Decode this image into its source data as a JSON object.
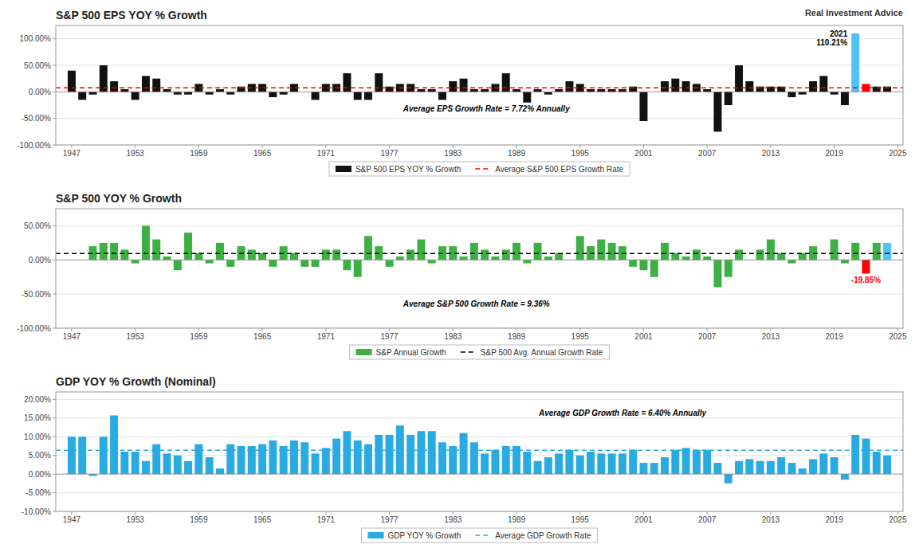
{
  "chart_data": [
    {
      "type": "bar",
      "title": "S&P 500 EPS YOY % Growth",
      "subtitle": "Real Investment Advice",
      "x": [
        1947,
        1948,
        1949,
        1950,
        1951,
        1952,
        1953,
        1954,
        1955,
        1956,
        1957,
        1958,
        1959,
        1960,
        1961,
        1962,
        1963,
        1964,
        1965,
        1966,
        1967,
        1968,
        1969,
        1970,
        1971,
        1972,
        1973,
        1974,
        1975,
        1976,
        1977,
        1978,
        1979,
        1980,
        1981,
        1982,
        1983,
        1984,
        1985,
        1986,
        1987,
        1988,
        1989,
        1990,
        1991,
        1992,
        1993,
        1994,
        1995,
        1996,
        1997,
        1998,
        1999,
        2000,
        2001,
        2002,
        2003,
        2004,
        2005,
        2006,
        2007,
        2008,
        2009,
        2010,
        2011,
        2012,
        2013,
        2014,
        2015,
        2016,
        2017,
        2018,
        2019,
        2020,
        2021,
        2022,
        2023,
        2024
      ],
      "series": [
        {
          "name": "S&P 500 EPS YOY % Growth",
          "type": "bar",
          "color": "#111111",
          "colors": [
            "#111111",
            "#111111",
            "#111111",
            "#111111",
            "#111111",
            "#111111",
            "#111111",
            "#111111",
            "#111111",
            "#111111",
            "#111111",
            "#111111",
            "#111111",
            "#111111",
            "#111111",
            "#111111",
            "#111111",
            "#111111",
            "#111111",
            "#111111",
            "#111111",
            "#111111",
            "#111111",
            "#111111",
            "#111111",
            "#111111",
            "#111111",
            "#111111",
            "#111111",
            "#111111",
            "#111111",
            "#111111",
            "#111111",
            "#111111",
            "#111111",
            "#111111",
            "#111111",
            "#111111",
            "#111111",
            "#111111",
            "#111111",
            "#111111",
            "#111111",
            "#111111",
            "#111111",
            "#111111",
            "#111111",
            "#111111",
            "#111111",
            "#111111",
            "#111111",
            "#111111",
            "#111111",
            "#111111",
            "#111111",
            "#111111",
            "#111111",
            "#111111",
            "#111111",
            "#111111",
            "#111111",
            "#111111",
            "#111111",
            "#111111",
            "#111111",
            "#111111",
            "#111111",
            "#111111",
            "#111111",
            "#111111",
            "#111111",
            "#111111",
            "#111111",
            "#111111",
            "#4DC3F7",
            "#FF0000",
            "#111111",
            "#111111"
          ],
          "values": [
            40,
            -15,
            -5,
            50,
            20,
            5,
            -15,
            30,
            25,
            5,
            -5,
            -5,
            15,
            -5,
            5,
            -5,
            10,
            15,
            15,
            -10,
            -5,
            15,
            0,
            -15,
            15,
            15,
            35,
            -15,
            -15,
            35,
            10,
            15,
            15,
            5,
            5,
            -15,
            20,
            25,
            5,
            5,
            15,
            35,
            5,
            -20,
            5,
            -5,
            5,
            20,
            15,
            5,
            5,
            5,
            5,
            10,
            -55,
            0,
            20,
            25,
            20,
            15,
            5,
            -75,
            -25,
            50,
            20,
            10,
            10,
            10,
            -10,
            -5,
            20,
            30,
            -5,
            -25,
            110,
            15,
            10,
            10
          ]
        },
        {
          "name": "Average S&P 500 EPS Growth Rate",
          "type": "hline",
          "color": "#FF0000",
          "line_style": "dashed",
          "value": 7.72
        }
      ],
      "annotations": [
        {
          "text": "Average EPS Growth Rate = 7.72% Annually"
        },
        {
          "text": "2021\n110.21%",
          "x": 2021,
          "y": 110.21,
          "color": "#000000"
        }
      ],
      "xlim": [
        1945.5,
        2025.5
      ],
      "xticks": [
        1947,
        1953,
        1959,
        1965,
        1971,
        1977,
        1983,
        1989,
        1995,
        2001,
        2007,
        2013,
        2019,
        2025
      ],
      "ylim": [
        -100,
        125
      ],
      "yticks": [
        {
          "value": -100,
          "label": "-100.00%"
        },
        {
          "value": -50,
          "label": "-50.00%"
        },
        {
          "value": 0,
          "label": "0.00%"
        },
        {
          "value": 50,
          "label": "50.00%"
        },
        {
          "value": 100,
          "label": "100.00%"
        }
      ],
      "grid": true,
      "legend": "bottom"
    },
    {
      "type": "bar",
      "title": "S&P 500 YOY % Growth",
      "x": [
        1947,
        1948,
        1949,
        1950,
        1951,
        1952,
        1953,
        1954,
        1955,
        1956,
        1957,
        1958,
        1959,
        1960,
        1961,
        1962,
        1963,
        1964,
        1965,
        1966,
        1967,
        1968,
        1969,
        1970,
        1971,
        1972,
        1973,
        1974,
        1975,
        1976,
        1977,
        1978,
        1979,
        1980,
        1981,
        1982,
        1983,
        1984,
        1985,
        1986,
        1987,
        1988,
        1989,
        1990,
        1991,
        1992,
        1993,
        1994,
        1995,
        1996,
        1997,
        1998,
        1999,
        2000,
        2001,
        2002,
        2003,
        2004,
        2005,
        2006,
        2007,
        2008,
        2009,
        2010,
        2011,
        2012,
        2013,
        2014,
        2015,
        2016,
        2017,
        2018,
        2019,
        2020,
        2021,
        2022,
        2023,
        2024
      ],
      "series": [
        {
          "name": "S&P Annual Growth",
          "type": "bar",
          "color": "#3CB043",
          "colors": [
            "#3CB043",
            "#3CB043",
            "#3CB043",
            "#3CB043",
            "#3CB043",
            "#3CB043",
            "#3CB043",
            "#3CB043",
            "#3CB043",
            "#3CB043",
            "#3CB043",
            "#3CB043",
            "#3CB043",
            "#3CB043",
            "#3CB043",
            "#3CB043",
            "#3CB043",
            "#3CB043",
            "#3CB043",
            "#3CB043",
            "#3CB043",
            "#3CB043",
            "#3CB043",
            "#3CB043",
            "#3CB043",
            "#3CB043",
            "#3CB043",
            "#3CB043",
            "#3CB043",
            "#3CB043",
            "#3CB043",
            "#3CB043",
            "#3CB043",
            "#3CB043",
            "#3CB043",
            "#3CB043",
            "#3CB043",
            "#3CB043",
            "#3CB043",
            "#3CB043",
            "#3CB043",
            "#3CB043",
            "#3CB043",
            "#3CB043",
            "#3CB043",
            "#3CB043",
            "#3CB043",
            "#3CB043",
            "#3CB043",
            "#3CB043",
            "#3CB043",
            "#3CB043",
            "#3CB043",
            "#3CB043",
            "#3CB043",
            "#3CB043",
            "#3CB043",
            "#3CB043",
            "#3CB043",
            "#3CB043",
            "#3CB043",
            "#3CB043",
            "#3CB043",
            "#3CB043",
            "#3CB043",
            "#3CB043",
            "#3CB043",
            "#3CB043",
            "#3CB043",
            "#3CB043",
            "#3CB043",
            "#3CB043",
            "#3CB043",
            "#3CB043",
            "#3CB043",
            "#FF0000",
            "#3CB043",
            "#4DC3F7"
          ],
          "values": [
            0,
            0,
            20,
            25,
            25,
            15,
            -5,
            50,
            30,
            5,
            -15,
            40,
            10,
            -5,
            25,
            -10,
            20,
            15,
            10,
            -10,
            20,
            10,
            -10,
            -10,
            15,
            15,
            -15,
            -25,
            35,
            20,
            -10,
            5,
            15,
            30,
            -5,
            20,
            20,
            5,
            25,
            15,
            5,
            15,
            25,
            -5,
            25,
            5,
            10,
            0,
            35,
            20,
            30,
            25,
            20,
            -10,
            -15,
            -25,
            25,
            10,
            5,
            15,
            5,
            -40,
            -25,
            15,
            0,
            15,
            30,
            10,
            -5,
            10,
            20,
            0,
            30,
            -5,
            25,
            -20,
            25,
            25
          ]
        },
        {
          "name": "S&P 500 Avg. Annual Growth Rate",
          "type": "hline",
          "color": "#000000",
          "line_style": "dashed",
          "value": 9.36
        }
      ],
      "annotations": [
        {
          "text": "Average S&P 500 Growth Rate = 9.36%"
        },
        {
          "text": "-19.85%",
          "x": 2022,
          "y": -19.85,
          "color": "#FF0000"
        }
      ],
      "xlim": [
        1945.5,
        2025.5
      ],
      "xticks": [
        1947,
        1953,
        1959,
        1965,
        1971,
        1977,
        1983,
        1989,
        1995,
        2001,
        2007,
        2013,
        2019,
        2025
      ],
      "ylim": [
        -100,
        75
      ],
      "yticks": [
        {
          "value": -100,
          "label": "-100.00%"
        },
        {
          "value": -50,
          "label": "-50.00%"
        },
        {
          "value": 0,
          "label": "0.00%"
        },
        {
          "value": 50,
          "label": "50.00%"
        }
      ],
      "grid": true,
      "legend": "bottom"
    },
    {
      "type": "bar",
      "title": "GDP YOY % Growth (Nominal)",
      "x": [
        1947,
        1948,
        1949,
        1950,
        1951,
        1952,
        1953,
        1954,
        1955,
        1956,
        1957,
        1958,
        1959,
        1960,
        1961,
        1962,
        1963,
        1964,
        1965,
        1966,
        1967,
        1968,
        1969,
        1970,
        1971,
        1972,
        1973,
        1974,
        1975,
        1976,
        1977,
        1978,
        1979,
        1980,
        1981,
        1982,
        1983,
        1984,
        1985,
        1986,
        1987,
        1988,
        1989,
        1990,
        1991,
        1992,
        1993,
        1994,
        1995,
        1996,
        1997,
        1998,
        1999,
        2000,
        2001,
        2002,
        2003,
        2004,
        2005,
        2006,
        2007,
        2008,
        2009,
        2010,
        2011,
        2012,
        2013,
        2014,
        2015,
        2016,
        2017,
        2018,
        2019,
        2020,
        2021,
        2022,
        2023,
        2024
      ],
      "series": [
        {
          "name": "GDP YOY % Growth",
          "type": "bar",
          "color": "#29ABE2",
          "values": [
            10.0,
            10.0,
            -0.5,
            10.0,
            15.7,
            6.0,
            6.0,
            3.5,
            8.0,
            5.5,
            5.0,
            3.5,
            8.0,
            4.5,
            1.5,
            8.0,
            7.5,
            7.5,
            8.0,
            9.0,
            7.5,
            9.0,
            8.5,
            5.5,
            7.0,
            9.5,
            11.5,
            9.0,
            8.0,
            10.5,
            10.5,
            13.0,
            10.5,
            11.5,
            11.5,
            8.5,
            7.5,
            11.0,
            8.5,
            5.5,
            6.5,
            7.5,
            7.5,
            6.0,
            3.5,
            4.5,
            5.5,
            6.5,
            5.0,
            6.0,
            5.5,
            5.5,
            5.5,
            6.5,
            3.0,
            3.0,
            4.5,
            6.5,
            7.0,
            6.5,
            6.5,
            3.0,
            -2.5,
            3.5,
            4.0,
            3.5,
            3.5,
            4.5,
            3.0,
            1.5,
            4.0,
            5.5,
            4.5,
            -1.5,
            10.5,
            9.5,
            6.0,
            5.0
          ]
        },
        {
          "name": "Average GDP Growth Rate",
          "type": "hline",
          "color": "#29ABE2",
          "line_style": "dashed",
          "value": 6.4
        }
      ],
      "annotations": [
        {
          "text": "Average GDP Growth Rate = 6.40% Annually"
        }
      ],
      "xlim": [
        1945.5,
        2025.5
      ],
      "xticks": [
        1947,
        1953,
        1959,
        1965,
        1971,
        1977,
        1983,
        1989,
        1995,
        2001,
        2007,
        2013,
        2019,
        2025
      ],
      "ylim": [
        -10,
        22
      ],
      "yticks": [
        {
          "value": -10,
          "label": "-10.00%"
        },
        {
          "value": -5,
          "label": "-5.00%"
        },
        {
          "value": 0,
          "label": "0.00%"
        },
        {
          "value": 5,
          "label": "5.00%"
        },
        {
          "value": 10,
          "label": "10.00%"
        },
        {
          "value": 15,
          "label": "15.00%"
        },
        {
          "value": 20,
          "label": "20.00%"
        }
      ],
      "grid": true,
      "legend": "bottom"
    }
  ]
}
